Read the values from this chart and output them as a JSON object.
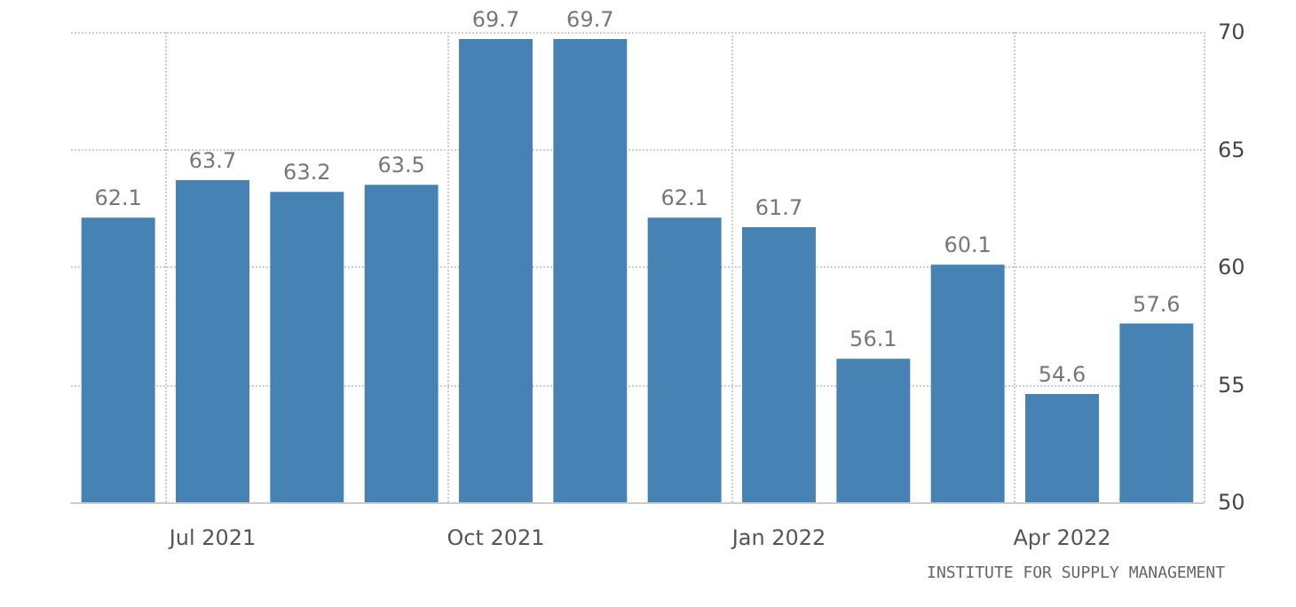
{
  "chart_data": {
    "type": "bar",
    "categories": [
      null,
      "Jul 2021",
      null,
      null,
      "Oct 2021",
      null,
      null,
      "Jan 2022",
      null,
      null,
      "Apr 2022",
      null
    ],
    "values": [
      62.1,
      63.7,
      63.2,
      63.5,
      69.7,
      69.7,
      62.1,
      61.7,
      56.1,
      60.1,
      54.6,
      57.6
    ],
    "color": "#4682b4",
    "ylim": [
      50,
      70
    ],
    "yticks": [
      50,
      55,
      60,
      65,
      70
    ],
    "grid": true,
    "data_labels": true,
    "annotations": [
      "INSTITUTE FOR SUPPLY MANAGEMENT"
    ]
  }
}
